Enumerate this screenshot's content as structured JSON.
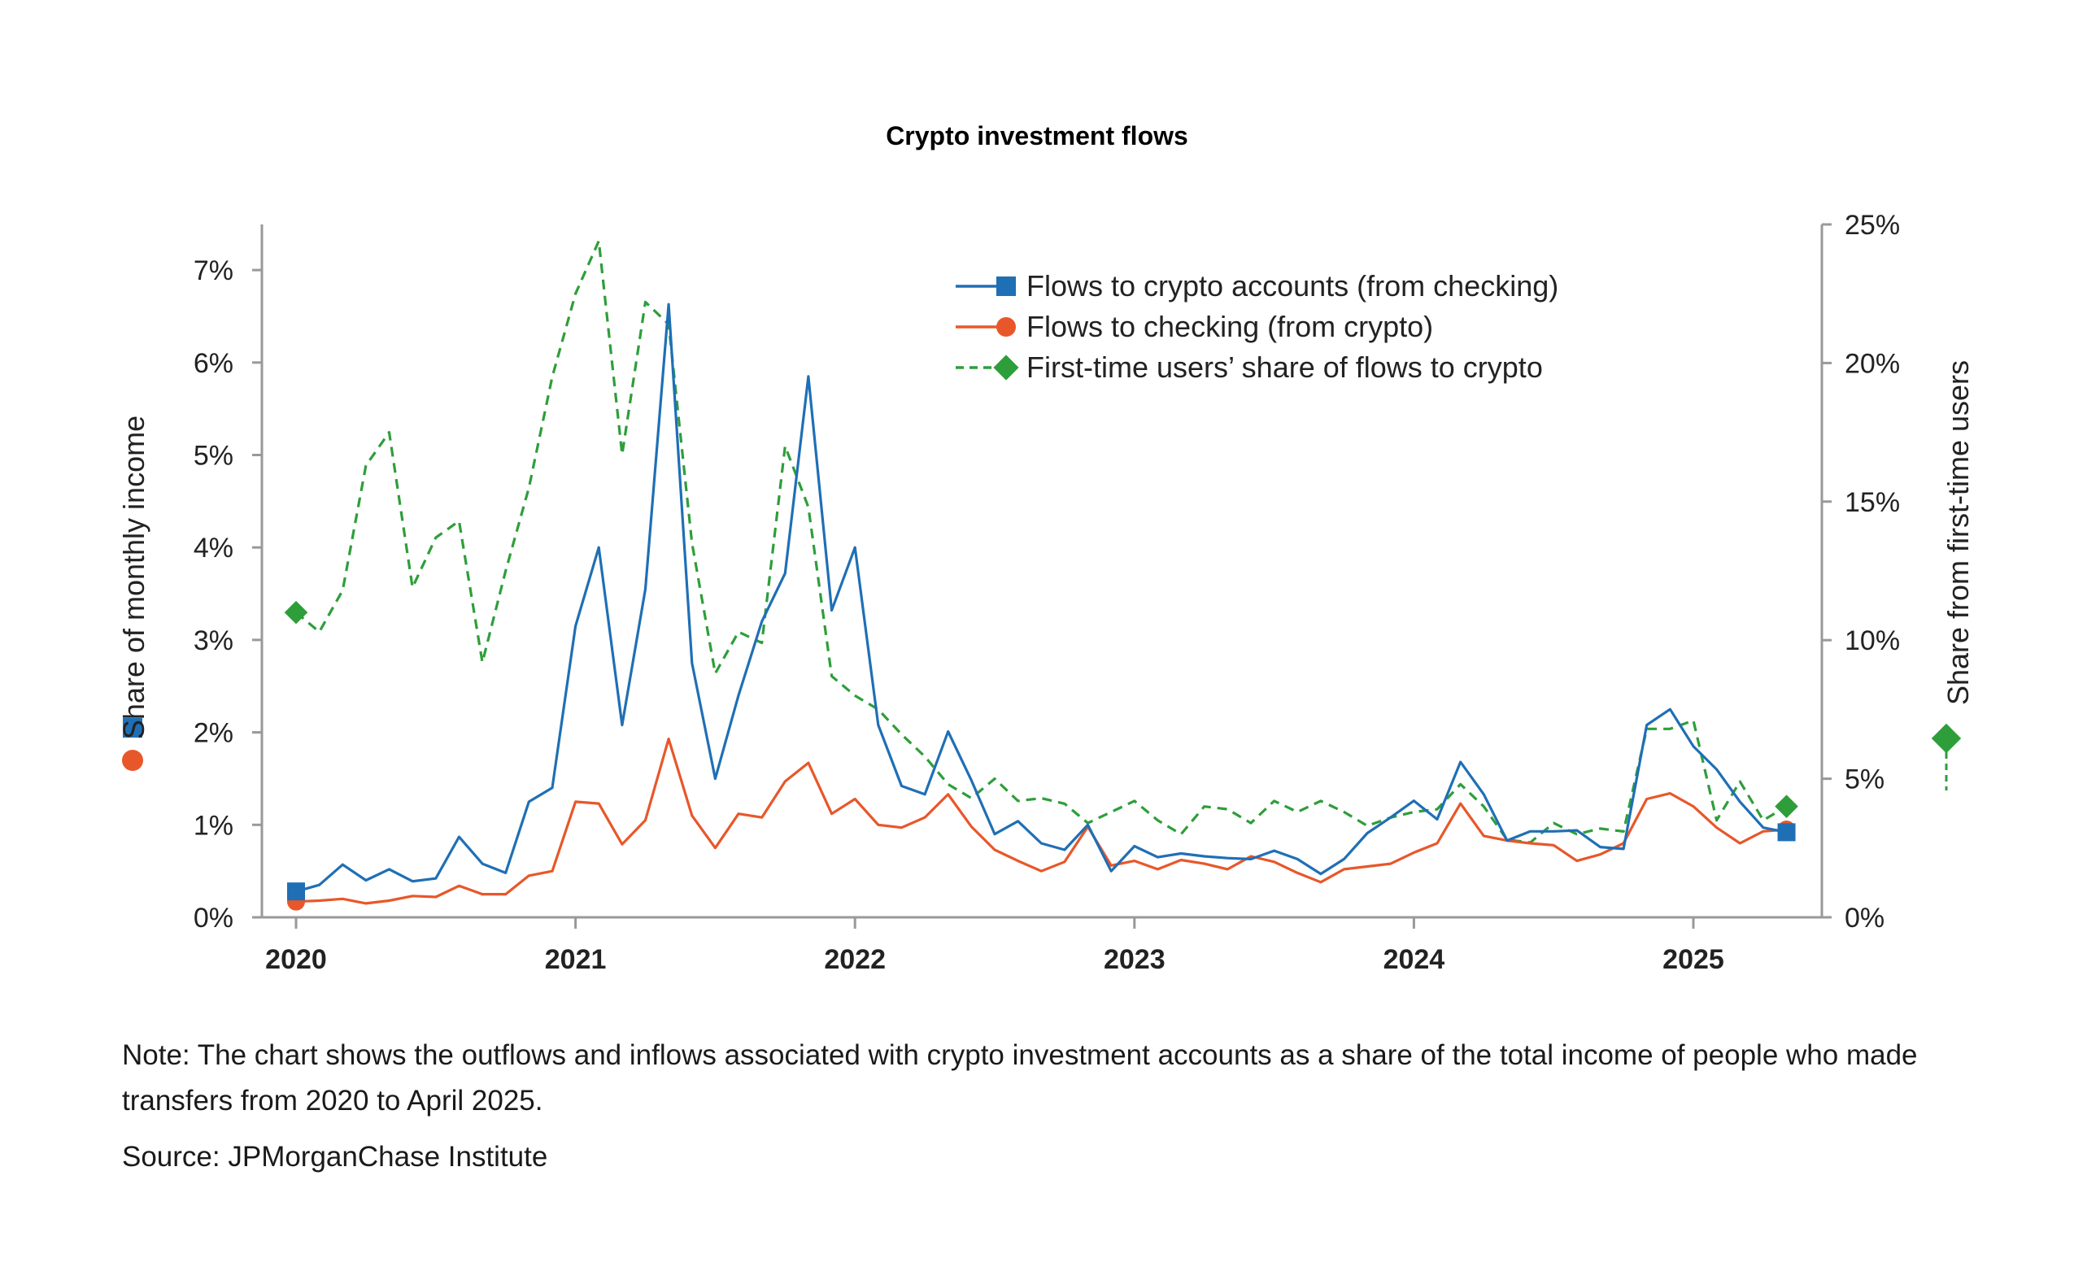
{
  "chart_data": {
    "type": "line",
    "title": "Crypto investment flows",
    "ylabel": "Share of monthly income",
    "y2label": "Share from first-time users",
    "ylim": [
      0,
      7.5
    ],
    "y2lim": [
      0,
      25
    ],
    "yticks": [
      "0%",
      "1%",
      "2%",
      "3%",
      "4%",
      "5%",
      "6%",
      "7%"
    ],
    "y2ticks": [
      "0%",
      "5%",
      "10%",
      "15%",
      "20%",
      "25%"
    ],
    "xticks": [
      "2020",
      "2021",
      "2022",
      "2023",
      "2024",
      "2025"
    ],
    "legend_position": "top-center",
    "x": [
      "2020-01",
      "2020-02",
      "2020-03",
      "2020-04",
      "2020-05",
      "2020-06",
      "2020-07",
      "2020-08",
      "2020-09",
      "2020-10",
      "2020-11",
      "2020-12",
      "2021-01",
      "2021-02",
      "2021-03",
      "2021-04",
      "2021-05",
      "2021-06",
      "2021-07",
      "2021-08",
      "2021-09",
      "2021-10",
      "2021-11",
      "2021-12",
      "2022-01",
      "2022-02",
      "2022-03",
      "2022-04",
      "2022-05",
      "2022-06",
      "2022-07",
      "2022-08",
      "2022-09",
      "2022-10",
      "2022-11",
      "2022-12",
      "2023-01",
      "2023-02",
      "2023-03",
      "2023-04",
      "2023-05",
      "2023-06",
      "2023-07",
      "2023-08",
      "2023-09",
      "2023-10",
      "2023-11",
      "2023-12",
      "2024-01",
      "2024-02",
      "2024-03",
      "2024-04",
      "2024-05",
      "2024-06",
      "2024-07",
      "2024-08",
      "2024-09",
      "2024-10",
      "2024-11",
      "2024-12",
      "2025-01",
      "2025-02",
      "2025-03",
      "2025-04",
      "2025-05"
    ],
    "series": [
      {
        "name": "Flows to crypto accounts (from checking)",
        "axis": "left",
        "color": "#1f6fb5",
        "marker": "square",
        "style": "solid",
        "values": [
          0.28,
          0.35,
          0.57,
          0.4,
          0.52,
          0.39,
          0.42,
          0.87,
          0.58,
          0.48,
          1.25,
          1.4,
          3.15,
          4.0,
          2.08,
          3.55,
          6.63,
          2.75,
          1.5,
          2.4,
          3.2,
          3.72,
          5.85,
          3.32,
          4.0,
          2.08,
          1.42,
          1.33,
          2.01,
          1.48,
          0.9,
          1.04,
          0.8,
          0.73,
          1.0,
          0.5,
          0.77,
          0.65,
          0.69,
          0.66,
          0.64,
          0.63,
          0.72,
          0.63,
          0.47,
          0.63,
          0.91,
          1.08,
          1.26,
          1.06,
          1.68,
          1.33,
          0.83,
          0.93,
          0.93,
          0.94,
          0.76,
          0.74,
          2.08,
          2.25,
          1.85,
          1.6,
          1.25,
          0.97,
          0.92
        ]
      },
      {
        "name": "Flows to checking (from crypto)",
        "axis": "left",
        "color": "#e8572a",
        "marker": "circle",
        "style": "solid",
        "values": [
          0.17,
          0.18,
          0.2,
          0.15,
          0.18,
          0.23,
          0.22,
          0.34,
          0.25,
          0.25,
          0.45,
          0.5,
          1.25,
          1.23,
          0.79,
          1.05,
          1.93,
          1.1,
          0.75,
          1.12,
          1.08,
          1.47,
          1.67,
          1.12,
          1.28,
          1.0,
          0.97,
          1.08,
          1.33,
          0.98,
          0.73,
          0.61,
          0.5,
          0.6,
          0.98,
          0.56,
          0.61,
          0.52,
          0.62,
          0.58,
          0.52,
          0.66,
          0.6,
          0.48,
          0.38,
          0.52,
          0.55,
          0.58,
          0.7,
          0.8,
          1.23,
          0.88,
          0.83,
          0.8,
          0.78,
          0.61,
          0.68,
          0.8,
          1.28,
          1.34,
          1.2,
          0.97,
          0.8,
          0.93,
          0.95
        ]
      },
      {
        "name": "First-time users’ share of flows to crypto",
        "axis": "right",
        "color": "#2e9e3a",
        "marker": "diamond",
        "style": "dashed",
        "values": [
          11.0,
          10.3,
          11.8,
          16.3,
          17.5,
          11.9,
          13.7,
          14.3,
          9.2,
          12.5,
          15.5,
          19.5,
          22.5,
          24.4,
          16.7,
          22.2,
          21.4,
          13.5,
          8.8,
          10.3,
          9.9,
          17.0,
          14.8,
          8.7,
          8.0,
          7.5,
          6.6,
          5.8,
          4.8,
          4.3,
          5.0,
          4.2,
          4.3,
          4.1,
          3.4,
          3.8,
          4.2,
          3.5,
          3.0,
          4.0,
          3.9,
          3.4,
          4.2,
          3.8,
          4.2,
          3.8,
          3.3,
          3.6,
          3.8,
          3.9,
          4.8,
          4.0,
          2.8,
          2.7,
          3.4,
          3.0,
          3.2,
          3.1,
          6.8,
          6.8,
          7.1,
          3.5,
          4.9,
          3.5,
          4.0
        ]
      }
    ]
  },
  "note": "Note: The chart shows the outflows and inflows associated with crypto investment accounts as a share of the total income of people who made transfers from 2020 to April 2025.",
  "source": "Source: JPMorganChase Institute"
}
